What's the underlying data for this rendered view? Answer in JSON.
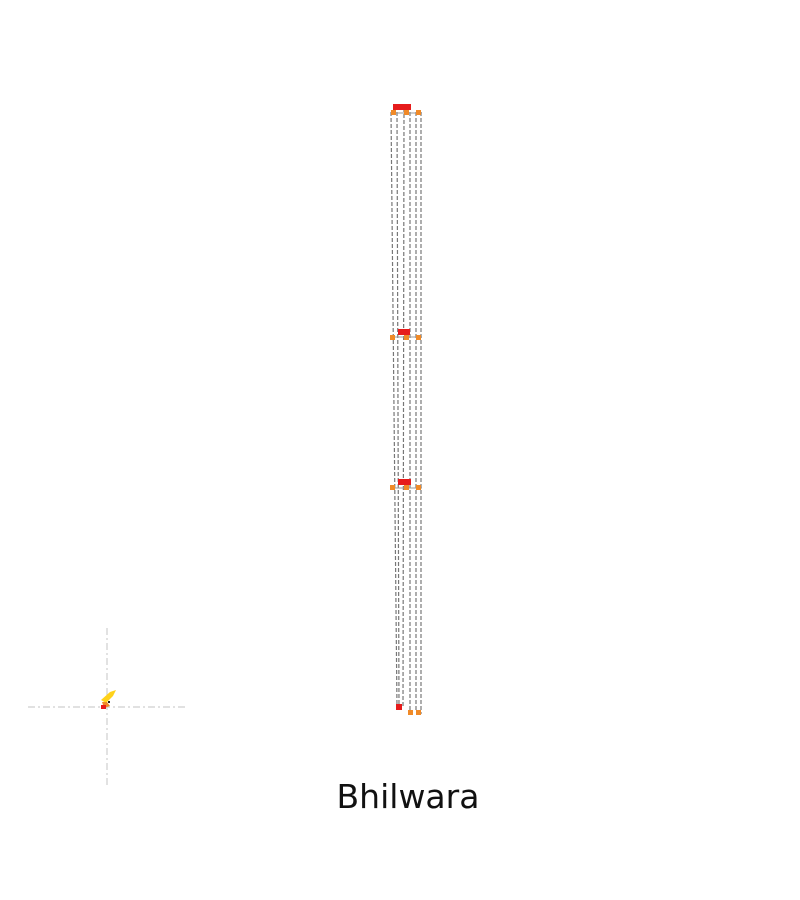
{
  "map": {
    "place_name": "Bhilwara",
    "colors": {
      "route_line": "#777777",
      "guide_line": "#cfcfcf",
      "marker_primary": "#e61b1b",
      "marker_secondary": "#f08a28",
      "marker_tertiary": "#ffd21a"
    },
    "markers": [
      {
        "name": "north-node",
        "color": "red"
      },
      {
        "name": "upper-middle-node",
        "color": "red"
      },
      {
        "name": "lower-middle-node",
        "color": "red"
      },
      {
        "name": "south-node",
        "color": "red"
      },
      {
        "name": "west-node",
        "color": "yellow"
      }
    ]
  }
}
